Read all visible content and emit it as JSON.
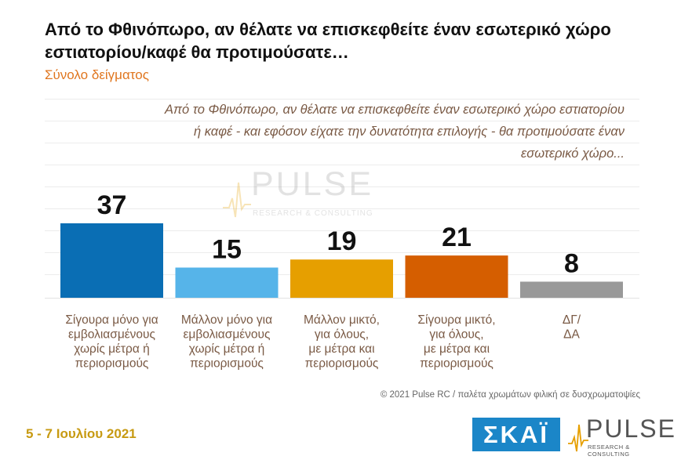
{
  "header": {
    "title": "Από το Φθινόπωρο, αν θέλατε να επισκεφθείτε έναν εσωτερικό χώρο εστιατορίου/καφέ θα προτιμούσατε…",
    "subtitle": "Σύνολο δείγματος"
  },
  "question": "Από το Φθινόπωρο, αν θέλατε να επισκεφθείτε έναν εσωτερικό χώρο εστιατορίου ή καφέ - και εφόσον είχατε την δυνατότητα επιλογής - θα προτιμούσατε έναν εσωτερικό χώρο...",
  "chart_data": {
    "type": "bar",
    "categories": [
      "Σίγουρα μόνο για εμβολιασμένους χωρίς μέτρα ή περιορισμούς",
      "Μάλλον μόνο για εμβολιασμένους χωρίς μέτρα ή περιορισμούς",
      "Μάλλον μικτό, για όλους, με μέτρα και περιορισμούς",
      "Σίγουρα μικτό, για όλους, με μέτρα και περιορισμούς",
      "ΔΓ/ ΔΑ"
    ],
    "category_lines": [
      [
        "Σίγουρα μόνο για",
        "εμβολιασμένους",
        "χωρίς μέτρα ή",
        "περιορισμούς"
      ],
      [
        "Μάλλον μόνο για",
        "εμβολιασμένους",
        "χωρίς μέτρα ή",
        "περιορισμούς"
      ],
      [
        "Μάλλον μικτό,",
        "για όλους,",
        "με μέτρα και",
        "περιορισμούς"
      ],
      [
        "Σίγουρα μικτό,",
        "για όλους,",
        "με μέτρα και",
        "περιορισμούς"
      ],
      [
        "ΔΓ/",
        "ΔΑ"
      ]
    ],
    "values": [
      37,
      15,
      19,
      21,
      8
    ],
    "colors": [
      "#0a6eb4",
      "#56b4e9",
      "#e69f00",
      "#d55e00",
      "#999999"
    ],
    "ylim": [
      0,
      37
    ],
    "label_color": "#7a5a45",
    "value_color": "#111111"
  },
  "footer": {
    "credit": "© 2021 Pulse RC   /   παλέτα χρωμάτων φιλική σε δυσχρωματοψίες",
    "date": "5 - 7  Ιουλίου  2021"
  },
  "logos": {
    "watermark_name": "PULSE",
    "watermark_sub": "RESEARCH & CONSULTING",
    "skai": "ΣΚΑΪ",
    "pulse_name": "PULSE",
    "pulse_sub": "RESEARCH & CONSULTING"
  }
}
